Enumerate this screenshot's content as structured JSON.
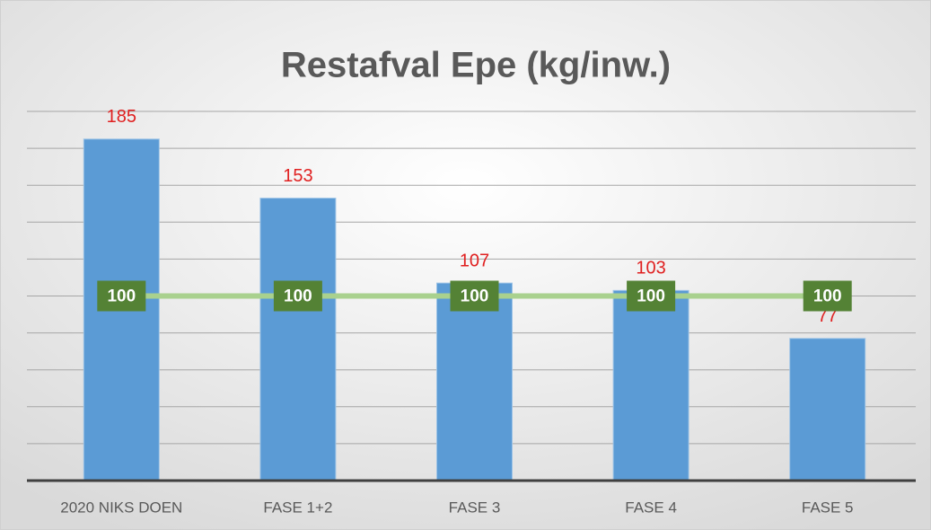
{
  "chart_data": {
    "type": "bar",
    "title": "Restafval Epe (kg/inw.)",
    "categories": [
      "2020 NIKS DOEN",
      "FASE 1+2",
      "FASE 3",
      "FASE 4",
      "FASE 5"
    ],
    "series": [
      {
        "type": "bar",
        "color": "#5b9bd5",
        "label_color": "#e02020",
        "values": [
          185,
          153,
          107,
          103,
          77
        ]
      },
      {
        "type": "line",
        "color": "#a9d18e",
        "label_color": "#548235",
        "values": [
          100,
          100,
          100,
          100,
          100
        ]
      }
    ],
    "ylim": [
      0,
      200
    ],
    "yticks": [
      0,
      20,
      40,
      60,
      80,
      100,
      120,
      140,
      160,
      180,
      200
    ],
    "grid": true
  }
}
